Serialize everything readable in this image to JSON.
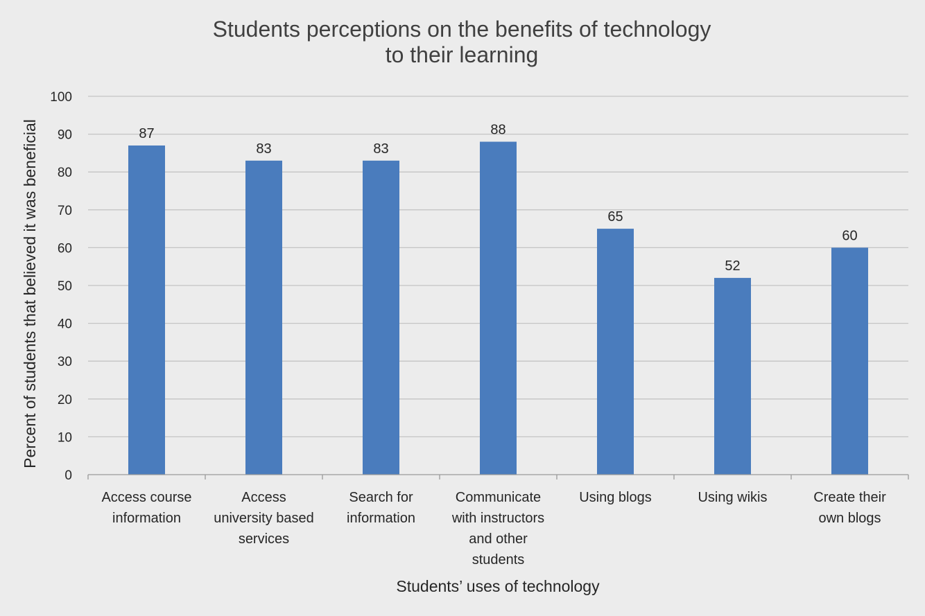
{
  "chart_data": {
    "type": "bar",
    "title": [
      "Students perceptions on the benefits of technology",
      "to their learning"
    ],
    "xlabel": "Students’ uses of technology",
    "ylabel": "Percent of students that believed it was beneficial",
    "categories": [
      [
        "Access course",
        "information"
      ],
      [
        "Access",
        "university based",
        "services"
      ],
      [
        "Search for",
        "information"
      ],
      [
        "Communicate",
        "with instructors",
        "and other",
        "students"
      ],
      [
        "Using blogs"
      ],
      [
        "Using wikis"
      ],
      [
        "Create their",
        "own blogs"
      ]
    ],
    "values": [
      87,
      83,
      83,
      88,
      65,
      52,
      60
    ],
    "data_labels": [
      "87",
      "83",
      "83",
      "88",
      "65",
      "52",
      "60"
    ],
    "ylim": [
      0,
      100
    ],
    "yticks": [
      0,
      10,
      20,
      30,
      40,
      50,
      60,
      70,
      80,
      90,
      100
    ],
    "grid": true,
    "legend": "none",
    "bar_color": "#4a7cbd"
  }
}
